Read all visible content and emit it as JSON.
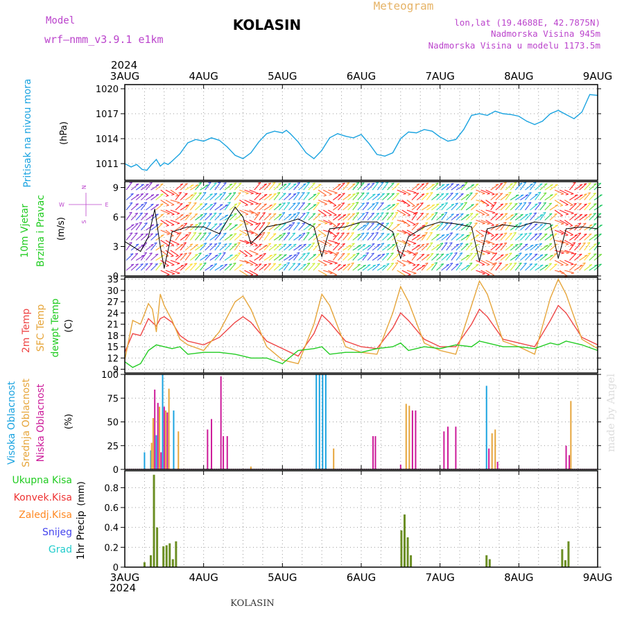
{
  "header": {
    "model_label": "Model",
    "model_name": "wrf–nmm_v3.9.1  e1km",
    "station": "KOLASIN",
    "meteogram": "Meteogram",
    "lonlat": "lon,lat (19.4688E, 42.7875N)",
    "elevation": "Nadmorska Visina 945m",
    "model_elevation": "Nadmorska Visina u modelu 1173.5m",
    "footer_station": "KOLASIN",
    "credit": "made by Angel"
  },
  "x_axis": {
    "top_year": "2024",
    "bottom_year": "2024",
    "day_labels": [
      "3AUG",
      "4AUG",
      "5AUG",
      "6AUG",
      "7AUG",
      "8AUG",
      "9AUG"
    ]
  },
  "colors": {
    "pressure": "#1aa3e0",
    "temp2m": "#ee4444",
    "sfc_temp": "#e6a53a",
    "dewpoint": "#22cc22",
    "high_cloud": "#1aa3e0",
    "mid_cloud": "#e6a53a",
    "low_cloud": "#cc1a99",
    "total_precip": "#6b8e23",
    "convective": "#ee3333",
    "frozen": "#ff8822",
    "snow": "#4444ee",
    "graupel": "#22cccc",
    "label_purple": "#bb44cc",
    "label_orange": "#e6b366"
  },
  "chart_data": [
    {
      "type": "line",
      "panel": "pressure",
      "ylabel_main": "Pritisak na nivou mora",
      "ylabel_unit": "(hPa)",
      "x_unit": "days since 3AUG 00UTC",
      "ylim": [
        1009,
        1020.5
      ],
      "yticks": [
        1011,
        1014,
        1017,
        1020
      ],
      "series": [
        {
          "values_x": [
            0,
            0.08,
            0.15,
            0.22,
            0.28,
            0.33,
            0.4,
            0.45,
            0.5,
            0.55,
            0.6,
            0.7,
            0.8,
            0.9,
            1.0,
            1.1,
            1.2,
            1.3,
            1.4,
            1.5,
            1.6,
            1.7,
            1.8,
            1.9,
            2.0,
            2.05,
            2.1,
            2.2,
            2.3,
            2.4,
            2.5,
            2.6,
            2.7,
            2.8,
            2.9,
            3.0,
            3.1,
            3.2,
            3.3,
            3.4,
            3.5,
            3.6,
            3.7,
            3.8,
            3.9,
            4.0,
            4.1,
            4.2,
            4.3,
            4.4,
            4.5,
            4.6,
            4.7,
            4.8,
            4.9,
            5.0,
            5.1,
            5.2,
            5.3,
            5.4,
            5.5,
            5.6,
            5.7,
            5.8,
            5.9,
            6.0
          ],
          "values": [
            1011.0,
            1010.6,
            1010.9,
            1010.3,
            1010.2,
            1010.8,
            1011.5,
            1010.7,
            1011.1,
            1010.9,
            1011.3,
            1012.2,
            1013.5,
            1013.9,
            1013.7,
            1014.1,
            1013.8,
            1013.0,
            1012.0,
            1011.6,
            1012.3,
            1013.6,
            1014.6,
            1014.9,
            1014.7,
            1015.0,
            1014.6,
            1013.6,
            1012.3,
            1011.6,
            1012.6,
            1014.1,
            1014.6,
            1014.3,
            1014.1,
            1014.5,
            1013.4,
            1012.1,
            1011.9,
            1012.3,
            1014.0,
            1014.8,
            1014.7,
            1015.1,
            1014.9,
            1014.2,
            1013.7,
            1013.9,
            1015.1,
            1016.8,
            1017.0,
            1016.8,
            1017.3,
            1017.0,
            1016.9,
            1016.7,
            1016.1,
            1015.7,
            1016.1,
            1017.0,
            1017.4,
            1016.9,
            1016.4,
            1017.2,
            1019.3,
            1019.2
          ]
        }
      ]
    },
    {
      "type": "line",
      "panel": "wind",
      "ylabel_main": "10m Vjetar",
      "ylabel_sub": "Brzina i Pravac",
      "ylabel_unit": "(m/s)",
      "compass": {
        "n": "N",
        "s": "S",
        "w": "W",
        "e": "E"
      },
      "ylim": [
        0,
        9.6
      ],
      "yticks": [
        0,
        3,
        6,
        9
      ],
      "series": [
        {
          "name": "speed",
          "values_x": [
            0,
            0.2,
            0.3,
            0.38,
            0.45,
            0.5,
            0.6,
            0.8,
            1.0,
            1.2,
            1.4,
            1.5,
            1.6,
            1.8,
            2.0,
            2.2,
            2.4,
            2.5,
            2.6,
            2.8,
            3.0,
            3.2,
            3.4,
            3.5,
            3.6,
            3.8,
            4.0,
            4.2,
            4.4,
            4.5,
            4.6,
            4.8,
            5.0,
            5.2,
            5.4,
            5.5,
            5.6,
            5.8,
            6.0
          ],
          "values": [
            3.5,
            2.5,
            4.0,
            6.8,
            3.0,
            0.8,
            4.5,
            5.0,
            5.0,
            4.3,
            7.0,
            6.0,
            3.3,
            5.0,
            5.3,
            5.8,
            5.0,
            2.0,
            4.8,
            5.0,
            5.5,
            5.5,
            4.5,
            1.8,
            4.0,
            5.0,
            5.5,
            5.3,
            5.0,
            1.5,
            4.8,
            5.2,
            5.0,
            5.5,
            5.3,
            1.8,
            4.8,
            5.0,
            4.8
          ]
        }
      ]
    },
    {
      "type": "line",
      "panel": "temperature",
      "ylabel_main": "2m Temp",
      "ylabel_sub": "SFC Temp",
      "ylabel_sub2": "dewpt Temp",
      "ylabel_unit": "(C)",
      "ylim": [
        8,
        33.5
      ],
      "yticks": [
        9,
        12,
        15,
        18,
        21,
        24,
        27,
        30,
        33
      ],
      "series": [
        {
          "name": "2m Temp",
          "values_x": [
            0,
            0.1,
            0.2,
            0.3,
            0.4,
            0.45,
            0.5,
            0.6,
            0.7,
            0.8,
            1.0,
            1.2,
            1.4,
            1.5,
            1.6,
            1.8,
            2.0,
            2.2,
            2.4,
            2.5,
            2.6,
            2.8,
            3.0,
            3.2,
            3.4,
            3.5,
            3.6,
            3.8,
            4.0,
            4.2,
            4.4,
            4.5,
            4.6,
            4.8,
            5.0,
            5.2,
            5.4,
            5.5,
            5.6,
            5.8,
            6.0
          ],
          "values": [
            13.5,
            18.5,
            18.0,
            22.5,
            20.5,
            22.5,
            23.0,
            21.5,
            18.0,
            16.5,
            15.5,
            17.5,
            21.5,
            23.0,
            21.5,
            16.5,
            14.5,
            12.5,
            18.5,
            23.5,
            21.5,
            16.5,
            15.0,
            14.5,
            20.0,
            24.0,
            22.0,
            17.0,
            15.0,
            15.0,
            21.0,
            25.0,
            23.0,
            17.0,
            16.0,
            15.0,
            22.0,
            26.0,
            24.0,
            17.5,
            15.5
          ]
        },
        {
          "name": "SFC Temp",
          "values_x": [
            0,
            0.1,
            0.2,
            0.3,
            0.35,
            0.4,
            0.45,
            0.5,
            0.6,
            0.7,
            0.8,
            1.0,
            1.2,
            1.4,
            1.5,
            1.6,
            1.8,
            2.0,
            2.2,
            2.4,
            2.5,
            2.6,
            2.8,
            3.0,
            3.2,
            3.4,
            3.5,
            3.6,
            3.8,
            4.0,
            4.2,
            4.4,
            4.5,
            4.6,
            4.8,
            5.0,
            5.2,
            5.4,
            5.5,
            5.6,
            5.8,
            6.0
          ],
          "values": [
            11.5,
            22.0,
            21.0,
            26.5,
            25.0,
            19.0,
            29.0,
            26.0,
            22.0,
            17.0,
            15.5,
            14.0,
            19.0,
            27.0,
            28.5,
            25.0,
            15.0,
            11.5,
            10.5,
            21.0,
            29.0,
            26.0,
            15.0,
            13.5,
            13.0,
            24.0,
            31.0,
            27.0,
            16.0,
            14.0,
            13.0,
            26.0,
            32.5,
            29.0,
            16.5,
            15.0,
            13.0,
            28.0,
            33.0,
            29.0,
            17.0,
            14.5
          ]
        },
        {
          "name": "dewpt Temp",
          "values_x": [
            0,
            0.1,
            0.2,
            0.3,
            0.4,
            0.5,
            0.6,
            0.7,
            0.8,
            1.0,
            1.2,
            1.4,
            1.5,
            1.6,
            1.8,
            2.0,
            2.2,
            2.4,
            2.5,
            2.6,
            2.8,
            3.0,
            3.2,
            3.4,
            3.5,
            3.6,
            3.8,
            4.0,
            4.2,
            4.4,
            4.5,
            4.6,
            4.8,
            5.0,
            5.2,
            5.4,
            5.5,
            5.6,
            5.8,
            6.0
          ],
          "values": [
            11.0,
            9.5,
            10.5,
            14.0,
            15.5,
            15.0,
            14.5,
            15.0,
            13.0,
            13.5,
            13.5,
            13.0,
            12.5,
            12.0,
            12.0,
            10.5,
            14.0,
            14.5,
            15.0,
            13.0,
            13.5,
            13.5,
            14.5,
            15.0,
            16.0,
            14.0,
            15.0,
            14.5,
            15.5,
            15.0,
            16.5,
            16.0,
            15.0,
            15.0,
            14.5,
            16.0,
            15.5,
            16.5,
            15.5,
            14.0
          ]
        }
      ]
    },
    {
      "type": "bar",
      "panel": "cloud",
      "ylabel_main": "Visoka Oblacnost",
      "ylabel_sub": "Srednja Oblacnost",
      "ylabel_sub2": "Niska Oblacnost",
      "ylabel_unit": "(%)",
      "ylim": [
        0,
        100
      ],
      "yticks": [
        0,
        25,
        50,
        75,
        100
      ],
      "series": [
        {
          "name": "Visoka Oblacnost",
          "values_x": [
            0.25,
            0.33,
            0.4,
            0.48,
            0.62,
            2.43,
            2.47,
            2.51,
            2.55,
            4.59
          ],
          "values": [
            18,
            20,
            36,
            100,
            62,
            100,
            100,
            100,
            100,
            88
          ]
        },
        {
          "name": "Srednja Oblacnost",
          "values_x": [
            0.34,
            0.36,
            0.44,
            0.52,
            0.56,
            0.68,
            1.6,
            2.65,
            3.57,
            3.61,
            4.66,
            4.7,
            5.66
          ],
          "values": [
            28,
            54,
            66,
            62,
            85,
            40,
            3,
            22,
            69,
            67,
            38,
            42,
            72
          ]
        },
        {
          "name": "Niska Oblacnost",
          "values_x": [
            0.38,
            0.42,
            0.46,
            0.5,
            0.54,
            1.05,
            1.1,
            1.22,
            1.25,
            1.3,
            3.15,
            3.18,
            3.5,
            3.65,
            3.69,
            4.05,
            4.1,
            4.2,
            4.62,
            4.73,
            5.6,
            5.64
          ],
          "values": [
            84,
            70,
            18,
            66,
            60,
            42,
            53,
            98,
            35,
            35,
            35,
            35,
            5,
            62,
            62,
            40,
            45,
            45,
            22,
            8,
            25,
            15
          ]
        }
      ]
    },
    {
      "type": "bar",
      "panel": "precipitation",
      "legend": [
        "Ukupna Kisa",
        "Konvek.Kisa",
        "Zaledj.Kisa",
        "Snijeg",
        "Grad"
      ],
      "ylabel_main": "1hr Precip",
      "ylabel_unit": "(mm)",
      "ylim": [
        0,
        0.97
      ],
      "yticks": [
        0,
        0.2,
        0.4,
        0.6,
        0.8
      ],
      "yticklabels": [
        "0",
        "0.2",
        "0.4",
        "0.6",
        "0.8"
      ],
      "series": [
        {
          "name": "Ukupna Kisa",
          "values_x": [
            0.25,
            0.33,
            0.37,
            0.41,
            0.49,
            0.53,
            0.57,
            0.61,
            0.65,
            3.51,
            3.55,
            3.59,
            3.63,
            4.59,
            4.63,
            5.55,
            5.59,
            5.63
          ],
          "values": [
            0.05,
            0.12,
            0.93,
            0.4,
            0.21,
            0.22,
            0.24,
            0.08,
            0.26,
            0.37,
            0.53,
            0.3,
            0.12,
            0.12,
            0.08,
            0.18,
            0.07,
            0.26
          ]
        }
      ]
    }
  ]
}
